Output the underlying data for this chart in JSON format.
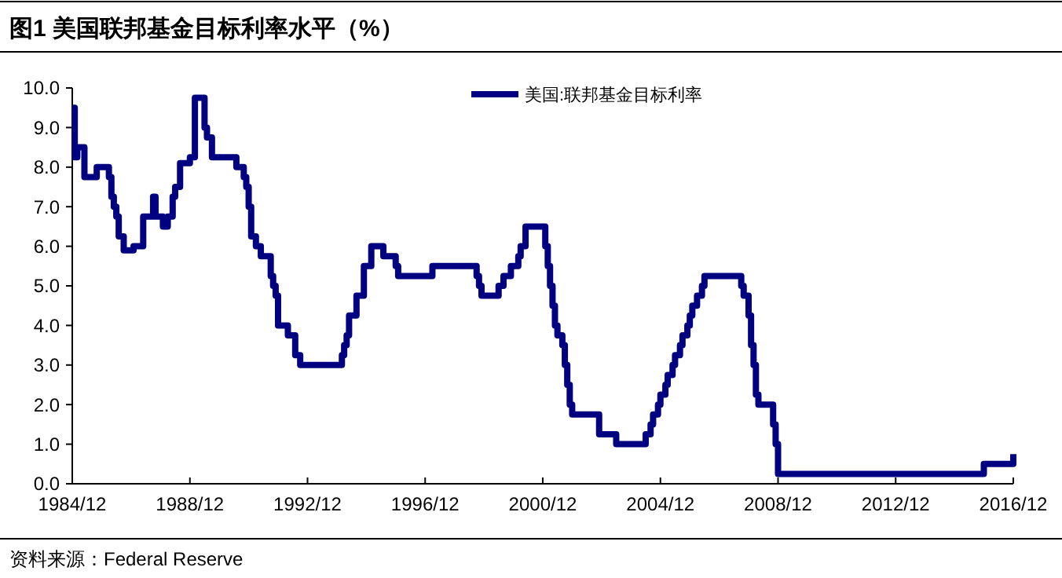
{
  "chart_data": {
    "type": "step",
    "title": "图1  美国联邦基金目标利率水平（%）",
    "annotations": [
      "资料来源：Federal Reserve"
    ],
    "xlim": [
      "1984-12",
      "2016-12"
    ],
    "xticks": [
      {
        "value": "1984-12",
        "label": "1984/12"
      },
      {
        "value": "1988-12",
        "label": "1988/12"
      },
      {
        "value": "1992-12",
        "label": "1992/12"
      },
      {
        "value": "1996-12",
        "label": "1996/12"
      },
      {
        "value": "2000-12",
        "label": "2000/12"
      },
      {
        "value": "2004-12",
        "label": "2004/12"
      },
      {
        "value": "2008-12",
        "label": "2008/12"
      },
      {
        "value": "2012-12",
        "label": "2012/12"
      },
      {
        "value": "2016-12",
        "label": "2016/12"
      }
    ],
    "ylim": [
      0,
      10
    ],
    "yticks": [
      {
        "value": 0,
        "label": "0.0"
      },
      {
        "value": 1,
        "label": "1.0"
      },
      {
        "value": 2,
        "label": "2.0"
      },
      {
        "value": 3,
        "label": "3.0"
      },
      {
        "value": 4,
        "label": "4.0"
      },
      {
        "value": 5,
        "label": "5.0"
      },
      {
        "value": 6,
        "label": "6.0"
      },
      {
        "value": 7,
        "label": "7.0"
      },
      {
        "value": 8,
        "label": "8.0"
      },
      {
        "value": 9,
        "label": "9.0"
      },
      {
        "value": 10,
        "label": "10.0"
      }
    ],
    "grid": false,
    "legend": "top right",
    "line_style": "solid",
    "marker": "none",
    "series": [
      {
        "name": "美国:联邦基金目标利率",
        "color": "#000080",
        "x": [
          "1984-12",
          "1985-01",
          "1985-02",
          "1985-05",
          "1985-10",
          "1986-03",
          "1986-04",
          "1986-05",
          "1986-06",
          "1986-07",
          "1986-09",
          "1987-01",
          "1987-05",
          "1987-09",
          "1987-10",
          "1988-01",
          "1988-03",
          "1988-05",
          "1988-06",
          "1988-08",
          "1988-12",
          "1989-02",
          "1989-06",
          "1989-07",
          "1989-09",
          "1990-07",
          "1990-10",
          "1990-11",
          "1990-12",
          "1991-01",
          "1991-03",
          "1991-05",
          "1991-09",
          "1991-10",
          "1991-11",
          "1991-12",
          "1992-04",
          "1992-07",
          "1992-09",
          "1994-02",
          "1994-03",
          "1994-04",
          "1994-05",
          "1994-08",
          "1994-11",
          "1995-02",
          "1995-07",
          "1995-12",
          "1996-01",
          "1997-03",
          "1998-09",
          "1998-10",
          "1998-11",
          "1999-06",
          "1999-08",
          "1999-11",
          "2000-02",
          "2000-03",
          "2000-05",
          "2001-01",
          "2001-02",
          "2001-03",
          "2001-04",
          "2001-05",
          "2001-06",
          "2001-08",
          "2001-09",
          "2001-10",
          "2001-11",
          "2001-12",
          "2002-11",
          "2003-06",
          "2004-06",
          "2004-08",
          "2004-09",
          "2004-11",
          "2004-12",
          "2005-02",
          "2005-03",
          "2005-05",
          "2005-06",
          "2005-08",
          "2005-09",
          "2005-11",
          "2005-12",
          "2006-01",
          "2006-03",
          "2006-05",
          "2006-06",
          "2007-09",
          "2007-10",
          "2007-12",
          "2008-01",
          "2008-02",
          "2008-03",
          "2008-04",
          "2008-10",
          "2008-11",
          "2008-12",
          "2015-12",
          "2016-12"
        ],
        "values": [
          9.5,
          8.25,
          8.5,
          7.75,
          8.0,
          7.75,
          7.25,
          7.0,
          6.75,
          6.25,
          5.9,
          6.0,
          6.75,
          7.25,
          6.75,
          6.5,
          6.75,
          7.25,
          7.5,
          8.1,
          8.25,
          9.75,
          9.0,
          8.75,
          8.25,
          8.0,
          7.75,
          7.5,
          7.0,
          6.25,
          6.0,
          5.75,
          5.25,
          5.0,
          4.75,
          4.0,
          3.75,
          3.25,
          3.0,
          3.25,
          3.5,
          3.75,
          4.25,
          4.75,
          5.5,
          6.0,
          5.75,
          5.5,
          5.25,
          5.5,
          5.25,
          5.0,
          4.75,
          5.0,
          5.25,
          5.5,
          5.75,
          6.0,
          6.5,
          6.0,
          5.5,
          5.0,
          4.5,
          4.0,
          3.75,
          3.5,
          3.0,
          2.5,
          2.0,
          1.75,
          1.25,
          1.0,
          1.25,
          1.5,
          1.75,
          2.0,
          2.25,
          2.5,
          2.75,
          3.0,
          3.25,
          3.5,
          3.75,
          4.0,
          4.25,
          4.5,
          4.75,
          5.0,
          5.25,
          5.0,
          4.75,
          4.25,
          3.5,
          3.0,
          2.25,
          2.0,
          1.5,
          1.0,
          0.25,
          0.5,
          0.75
        ]
      }
    ]
  }
}
